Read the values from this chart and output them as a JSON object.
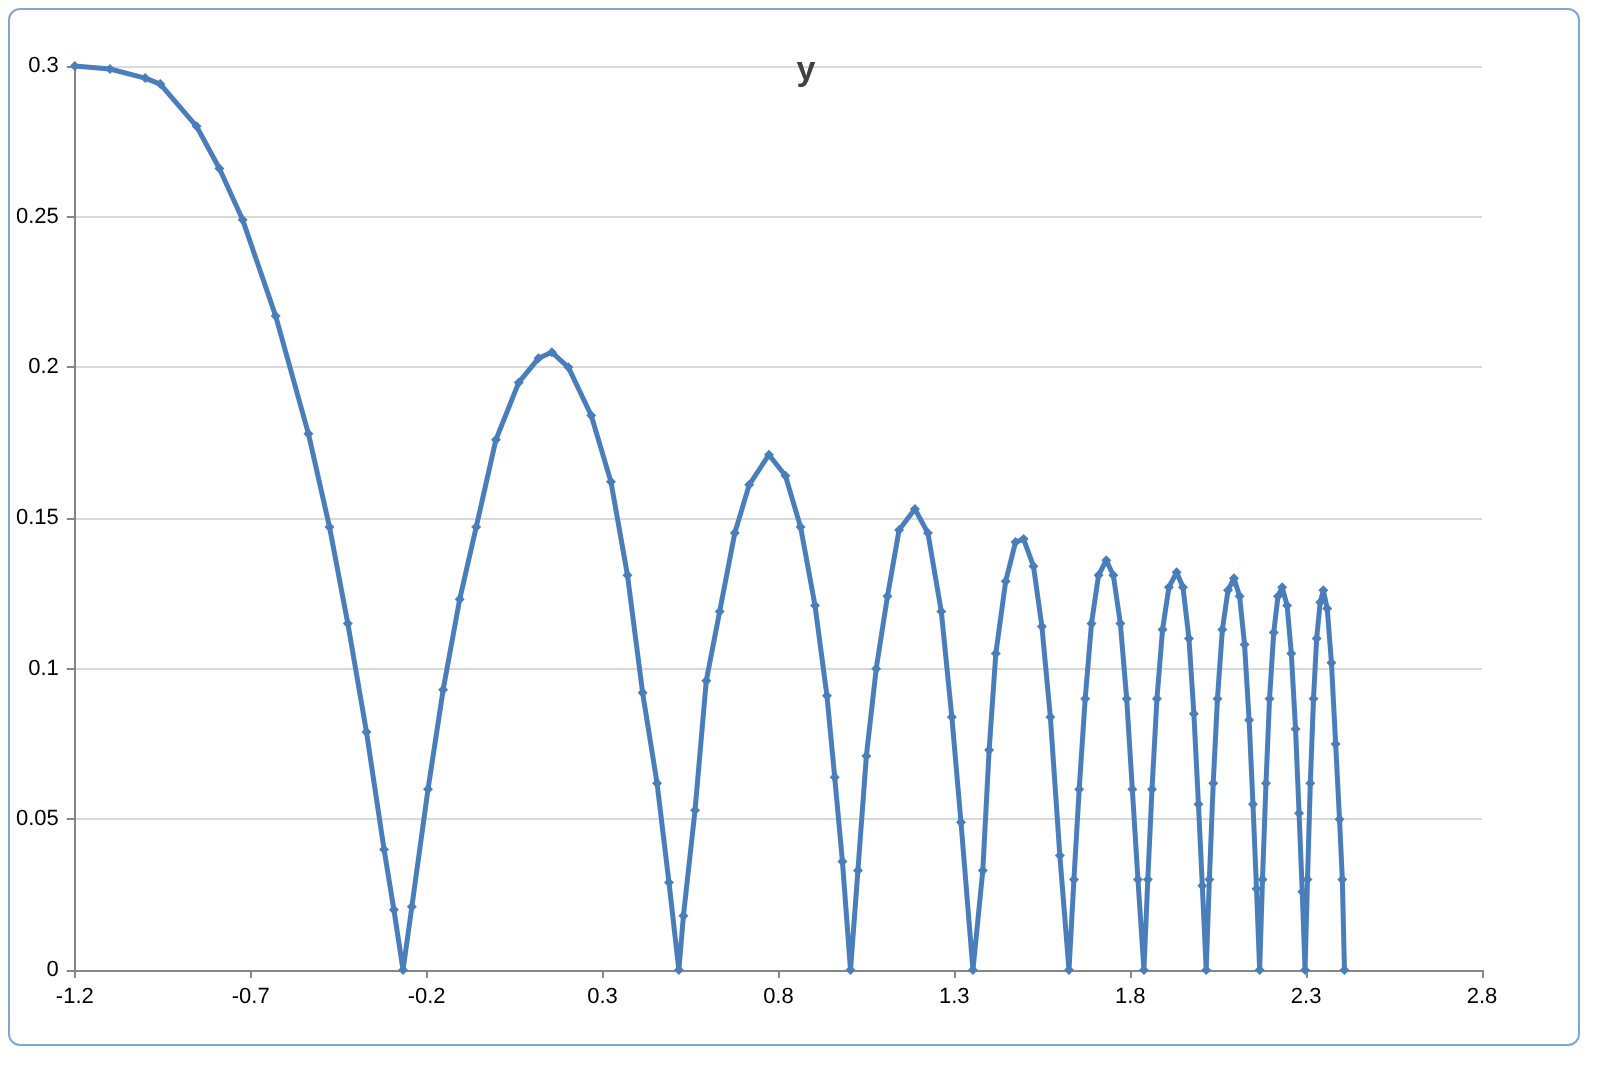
{
  "chart_data": {
    "type": "line",
    "title": "y",
    "x": [
      -1.2,
      -1.1,
      -1.0,
      -0.957,
      -0.854,
      -0.789,
      -0.723,
      -0.629,
      -0.536,
      -0.476,
      -0.424,
      -0.371,
      -0.321,
      -0.293,
      -0.267,
      -0.242,
      -0.196,
      -0.153,
      -0.106,
      -0.059,
      -0.003,
      0.062,
      0.118,
      0.156,
      0.203,
      0.268,
      0.324,
      0.371,
      0.414,
      0.455,
      0.489,
      0.517,
      0.53,
      0.563,
      0.595,
      0.633,
      0.676,
      0.717,
      0.773,
      0.82,
      0.863,
      0.904,
      0.938,
      0.96,
      0.982,
      1.005,
      1.026,
      1.05,
      1.078,
      1.11,
      1.143,
      1.188,
      1.225,
      1.263,
      1.293,
      1.319,
      1.353,
      1.381,
      1.399,
      1.418,
      1.446,
      1.474,
      1.497,
      1.525,
      1.549,
      1.573,
      1.6,
      1.626,
      1.64,
      1.655,
      1.672,
      1.69,
      1.71,
      1.732,
      1.752,
      1.772,
      1.79,
      1.806,
      1.822,
      1.839,
      1.85,
      1.862,
      1.876,
      1.892,
      1.91,
      1.932,
      1.95,
      1.967,
      1.981,
      1.994,
      2.005,
      2.016,
      2.025,
      2.036,
      2.048,
      2.062,
      2.078,
      2.095,
      2.111,
      2.125,
      2.138,
      2.149,
      2.159,
      2.168,
      2.176,
      2.186,
      2.196,
      2.208,
      2.22,
      2.232,
      2.246,
      2.258,
      2.27,
      2.28,
      2.289,
      2.297,
      2.304,
      2.312,
      2.321,
      2.33,
      2.34,
      2.349,
      2.36,
      2.372,
      2.384,
      2.395,
      2.403,
      2.409
    ],
    "series": [
      {
        "color": "#4a7ebb",
        "values": [
          0.3,
          0.299,
          0.296,
          0.294,
          0.28,
          0.266,
          0.249,
          0.217,
          0.178,
          0.147,
          0.115,
          0.079,
          0.04,
          0.02,
          0,
          0.021,
          0.06,
          0.093,
          0.123,
          0.147,
          0.176,
          0.195,
          0.203,
          0.205,
          0.2,
          0.184,
          0.162,
          0.131,
          0.092,
          0.062,
          0.029,
          0,
          0.018,
          0.053,
          0.096,
          0.119,
          0.145,
          0.161,
          0.171,
          0.164,
          0.147,
          0.121,
          0.091,
          0.064,
          0.036,
          0,
          0.033,
          0.071,
          0.1,
          0.124,
          0.146,
          0.153,
          0.145,
          0.119,
          0.084,
          0.049,
          0,
          0.033,
          0.073,
          0.105,
          0.129,
          0.142,
          0.143,
          0.134,
          0.114,
          0.084,
          0.038,
          0,
          0.03,
          0.06,
          0.09,
          0.115,
          0.131,
          0.136,
          0.131,
          0.115,
          0.09,
          0.06,
          0.03,
          0,
          0.03,
          0.06,
          0.09,
          0.113,
          0.127,
          0.132,
          0.127,
          0.11,
          0.085,
          0.055,
          0.028,
          0,
          0.03,
          0.062,
          0.09,
          0.113,
          0.126,
          0.13,
          0.124,
          0.108,
          0.083,
          0.055,
          0.027,
          0,
          0.03,
          0.062,
          0.09,
          0.112,
          0.124,
          0.127,
          0.121,
          0.105,
          0.08,
          0.052,
          0.026,
          0,
          0.03,
          0.062,
          0.09,
          0.11,
          0.122,
          0.126,
          0.12,
          0.102,
          0.075,
          0.05,
          0.03,
          0
        ]
      }
    ],
    "xlim": [
      -1.2,
      2.8
    ],
    "xticks": [
      -1.2,
      -0.7,
      -0.2,
      0.3,
      0.8,
      1.3,
      1.8,
      2.3,
      2.8
    ],
    "ylim": [
      0,
      0.3
    ],
    "yticks": [
      0,
      0.05,
      0.1,
      0.15,
      0.2,
      0.25,
      0.3
    ],
    "grid": "y",
    "marker": "diamond",
    "line_style": "solid"
  }
}
